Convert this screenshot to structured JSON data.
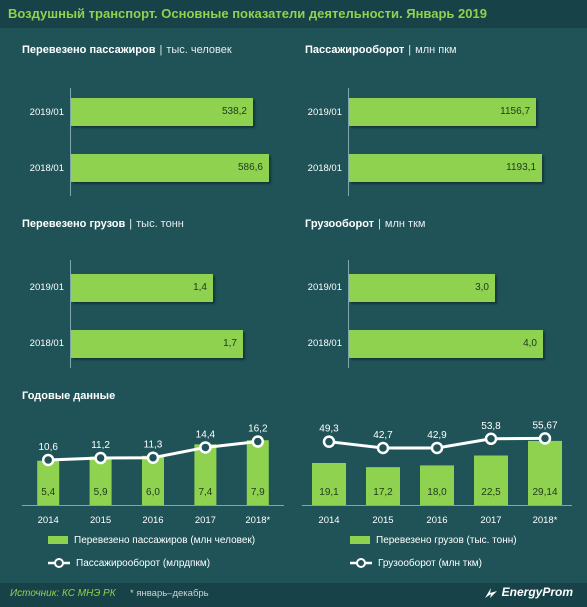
{
  "header": {
    "title": "Воздушный транспорт. Основные показатели деятельности. Январь 2019"
  },
  "panels": [
    {
      "title": "Перевезено пассажиров",
      "unit": "тыс. человек",
      "rows": [
        {
          "label": "2019/01",
          "value": 538.2,
          "text": "538,2"
        },
        {
          "label": "2018/01",
          "value": 586.6,
          "text": "586,6"
        }
      ]
    },
    {
      "title": "Пассажирооборот",
      "unit": "млн пкм",
      "rows": [
        {
          "label": "2019/01",
          "value": 1156.7,
          "text": "1156,7"
        },
        {
          "label": "2018/01",
          "value": 1193.1,
          "text": "1193,1"
        }
      ]
    },
    {
      "title": "Перевезено грузов",
      "unit": "тыс. тонн",
      "rows": [
        {
          "label": "2019/01",
          "value": 1.4,
          "text": "1,4"
        },
        {
          "label": "2018/01",
          "value": 1.7,
          "text": "1,7"
        }
      ]
    },
    {
      "title": "Грузооборот",
      "unit": "млн ткм",
      "rows": [
        {
          "label": "2019/01",
          "value": 3.0,
          "text": "3,0"
        },
        {
          "label": "2018/01",
          "value": 4.0,
          "text": "4,0"
        }
      ]
    }
  ],
  "annual": {
    "title": "Годовые данные",
    "years": [
      "2014",
      "2015",
      "2016",
      "2017",
      "2018*"
    ]
  },
  "chart_data": [
    {
      "type": "bar",
      "title": "Перевезено пассажиров",
      "ylabel": "тыс. человек",
      "categories": [
        "2019/01",
        "2018/01"
      ],
      "values": [
        538.2,
        586.6
      ]
    },
    {
      "type": "bar",
      "title": "Пассажирооборот",
      "ylabel": "млн пкм",
      "categories": [
        "2019/01",
        "2018/01"
      ],
      "values": [
        1156.7,
        1193.1
      ]
    },
    {
      "type": "bar",
      "title": "Перевезено грузов",
      "ylabel": "тыс. тонн",
      "categories": [
        "2019/01",
        "2018/01"
      ],
      "values": [
        1.4,
        1.7
      ]
    },
    {
      "type": "bar",
      "title": "Грузооборот",
      "ylabel": "млн ткм",
      "categories": [
        "2019/01",
        "2018/01"
      ],
      "values": [
        3.0,
        4.0
      ]
    },
    {
      "type": "bar+line",
      "title": "Годовые данные",
      "categories": [
        "2014",
        "2015",
        "2016",
        "2017",
        "2018*"
      ],
      "series": [
        {
          "name": "Перевезено пассажиров (млн человек)",
          "kind": "bar",
          "values": [
            5.4,
            5.9,
            6.0,
            7.4,
            7.9
          ],
          "labels": [
            "5,4",
            "5,9",
            "6,0",
            "7,4",
            "7,9"
          ]
        },
        {
          "name": "Пассажирооборот (млрдпкм)",
          "kind": "line",
          "values": [
            10.6,
            11.2,
            11.3,
            14.4,
            16.2
          ],
          "labels": [
            "10,6",
            "11,2",
            "11,3",
            "14,4",
            "16,2"
          ]
        }
      ]
    },
    {
      "type": "bar+line",
      "title": "Годовые данные",
      "categories": [
        "2014",
        "2015",
        "2016",
        "2017",
        "2018*"
      ],
      "series": [
        {
          "name": "Перевезено грузов (тыс. тонн)",
          "kind": "bar",
          "values": [
            19.1,
            17.2,
            18.0,
            22.5,
            29.14
          ],
          "labels": [
            "19,1",
            "17,2",
            "18,0",
            "22,5",
            "29,14"
          ]
        },
        {
          "name": "Грузооборот (млн ткм)",
          "kind": "line",
          "values": [
            49.3,
            42.7,
            42.9,
            53.8,
            55.67
          ],
          "labels": [
            "49,3",
            "42,7",
            "42,9",
            "53,8",
            "55,67"
          ]
        }
      ]
    }
  ],
  "footer": {
    "source": "Источник: КС МНЭ РК",
    "note": "* январь–декабрь",
    "brand": "EnergyProm"
  },
  "colors": {
    "accent": "#8fd24f",
    "background": "#1f5358",
    "line": "#ffffff"
  }
}
